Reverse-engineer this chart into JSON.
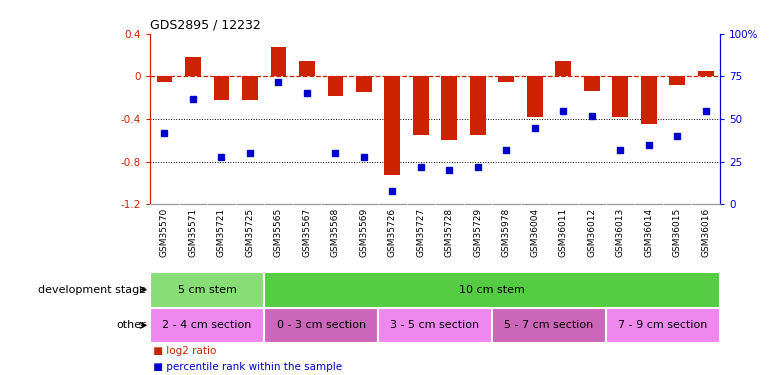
{
  "title": "GDS2895 / 12232",
  "samples": [
    "GSM35570",
    "GSM35571",
    "GSM35721",
    "GSM35725",
    "GSM35565",
    "GSM35567",
    "GSM35568",
    "GSM35569",
    "GSM35726",
    "GSM35727",
    "GSM35728",
    "GSM35729",
    "GSM35978",
    "GSM36004",
    "GSM36011",
    "GSM36012",
    "GSM36013",
    "GSM36014",
    "GSM36015",
    "GSM36016"
  ],
  "log2_ratio": [
    -0.05,
    0.18,
    -0.22,
    -0.22,
    0.28,
    0.14,
    -0.18,
    -0.15,
    -0.92,
    -0.55,
    -0.6,
    -0.55,
    -0.05,
    -0.38,
    0.14,
    -0.14,
    -0.38,
    -0.45,
    -0.08,
    0.05
  ],
  "percentile": [
    42,
    62,
    28,
    30,
    72,
    65,
    30,
    28,
    8,
    22,
    20,
    22,
    32,
    45,
    55,
    52,
    32,
    35,
    40,
    55
  ],
  "ylim_left": [
    -1.2,
    0.4
  ],
  "ylim_right": [
    0,
    100
  ],
  "bar_color": "#CC2200",
  "dot_color": "#0000CC",
  "zero_line_color": "#CC2200",
  "grid_color": "#000000",
  "bg_color": "#ffffff",
  "xticklabel_bg": "#CCCCCC",
  "dev_stage_groups": [
    {
      "label": "5 cm stem",
      "start": 0,
      "end": 4,
      "color": "#88DD77"
    },
    {
      "label": "10 cm stem",
      "start": 4,
      "end": 20,
      "color": "#55CC44"
    }
  ],
  "other_groups": [
    {
      "label": "2 - 4 cm section",
      "start": 0,
      "end": 4,
      "color": "#EE88EE"
    },
    {
      "label": "0 - 3 cm section",
      "start": 4,
      "end": 8,
      "color": "#CC66BB"
    },
    {
      "label": "3 - 5 cm section",
      "start": 8,
      "end": 12,
      "color": "#EE88EE"
    },
    {
      "label": "5 - 7 cm section",
      "start": 12,
      "end": 16,
      "color": "#CC66BB"
    },
    {
      "label": "7 - 9 cm section",
      "start": 16,
      "end": 20,
      "color": "#EE88EE"
    }
  ],
  "left_label": "development stage",
  "other_label": "other",
  "legend_items": [
    {
      "label": "log2 ratio",
      "color": "#CC2200"
    },
    {
      "label": "percentile rank within the sample",
      "color": "#0000CC"
    }
  ]
}
